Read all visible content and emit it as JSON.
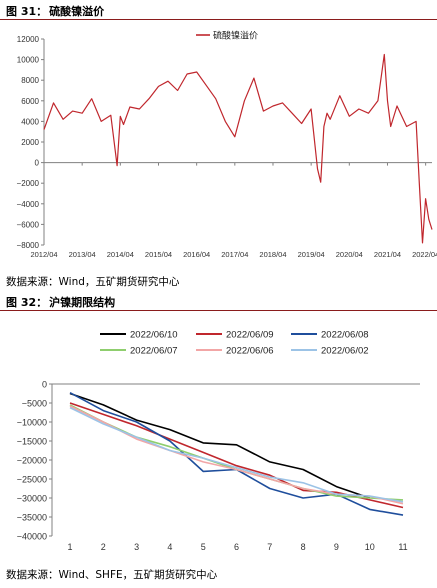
{
  "fig31": {
    "label": "图 31：",
    "title": "硫酸镍溢价",
    "source": "数据来源：Wind，五矿期货研究中心"
  },
  "fig32": {
    "label": "图 32：",
    "title": "沪镍期限结构",
    "source": "数据来源：Wind、SHFE，五矿期货研究中心"
  },
  "chart_data": [
    {
      "type": "line",
      "title": "",
      "legend_position": "top",
      "grid": false,
      "ylim": [
        -8000,
        12000
      ],
      "yticks": [
        12000,
        10000,
        8000,
        6000,
        4000,
        2000,
        0,
        -2000,
        -4000,
        -6000,
        -8000
      ],
      "xlim": [
        "2012/04",
        "2022/06"
      ],
      "xticks": [
        "2012/04",
        "2013/04",
        "2014/04",
        "2015/04",
        "2016/04",
        "2017/04",
        "2018/04",
        "2019/04",
        "2020/04",
        "2021/04",
        "2022/04"
      ],
      "color": "#c0272d",
      "series": [
        {
          "name": "硫酸镍溢价",
          "x": [
            "2012/04",
            "2012/07",
            "2012/10",
            "2013/01",
            "2013/04",
            "2013/07",
            "2013/10",
            "2014/01",
            "2014/03",
            "2014/04",
            "2014/05",
            "2014/07",
            "2014/10",
            "2015/01",
            "2015/04",
            "2015/07",
            "2015/10",
            "2016/01",
            "2016/04",
            "2016/07",
            "2016/10",
            "2017/01",
            "2017/04",
            "2017/07",
            "2017/10",
            "2018/01",
            "2018/04",
            "2018/07",
            "2018/10",
            "2019/01",
            "2019/04",
            "2019/06",
            "2019/07",
            "2019/08",
            "2019/09",
            "2019/10",
            "2020/01",
            "2020/04",
            "2020/07",
            "2020/10",
            "2021/01",
            "2021/03",
            "2021/04",
            "2021/05",
            "2021/07",
            "2021/10",
            "2022/01",
            "2022/02",
            "2022/03",
            "2022/04",
            "2022/05",
            "2022/06"
          ],
          "y": [
            3200,
            5800,
            4200,
            5000,
            4800,
            6200,
            4000,
            4600,
            -300,
            4500,
            3700,
            5400,
            5200,
            6200,
            7400,
            7900,
            7000,
            8600,
            8800,
            7500,
            6200,
            4000,
            2500,
            6000,
            8200,
            5000,
            5500,
            5800,
            4800,
            3800,
            5200,
            -600,
            -1900,
            3500,
            4800,
            4200,
            6500,
            4500,
            5200,
            4800,
            6000,
            10500,
            6000,
            3500,
            5500,
            3500,
            4000,
            -2000,
            -7800,
            -3500,
            -5500,
            -6500
          ]
        }
      ]
    },
    {
      "type": "line",
      "title": "",
      "legend_position": "top",
      "grid": false,
      "categories": [
        1,
        2,
        3,
        4,
        5,
        6,
        7,
        8,
        9,
        10,
        11
      ],
      "ylim": [
        -40000,
        0
      ],
      "yticks": [
        0,
        -5000,
        -10000,
        -15000,
        -20000,
        -25000,
        -30000,
        -35000,
        -40000
      ],
      "series": [
        {
          "name": "2022/06/10",
          "color": "#000000",
          "values": [
            -2500,
            -5500,
            -9500,
            -12000,
            -15500,
            -16000,
            -20500,
            -22500,
            -27000,
            -30000,
            null
          ]
        },
        {
          "name": "2022/06/09",
          "color": "#c0272d",
          "values": [
            -5000,
            -8000,
            -11000,
            -14500,
            -18000,
            -21500,
            -24000,
            -28000,
            -28500,
            -30500,
            -32500
          ]
        },
        {
          "name": "2022/06/08",
          "color": "#1f4e9c",
          "values": [
            -2300,
            -7000,
            -10000,
            -15000,
            -23000,
            -22500,
            -27500,
            -30000,
            -29000,
            -33000,
            -34500
          ]
        },
        {
          "name": "2022/06/07",
          "color": "#8fce6e",
          "values": [
            -5500,
            -10000,
            -14000,
            -16500,
            -19500,
            -22500,
            -25000,
            -27500,
            -29500,
            -30000,
            -30500
          ]
        },
        {
          "name": "2022/06/06",
          "color": "#f2a6a6",
          "values": [
            -5800,
            -10000,
            -14500,
            -17500,
            -20500,
            -22500,
            -25000,
            -27500,
            -29000,
            -29500,
            -31500
          ]
        },
        {
          "name": "2022/06/02",
          "color": "#9cc3e6",
          "values": [
            -6200,
            -10500,
            -14000,
            -17500,
            -19500,
            -22000,
            -24500,
            -26000,
            -29000,
            -29500,
            -31000
          ]
        }
      ]
    }
  ]
}
